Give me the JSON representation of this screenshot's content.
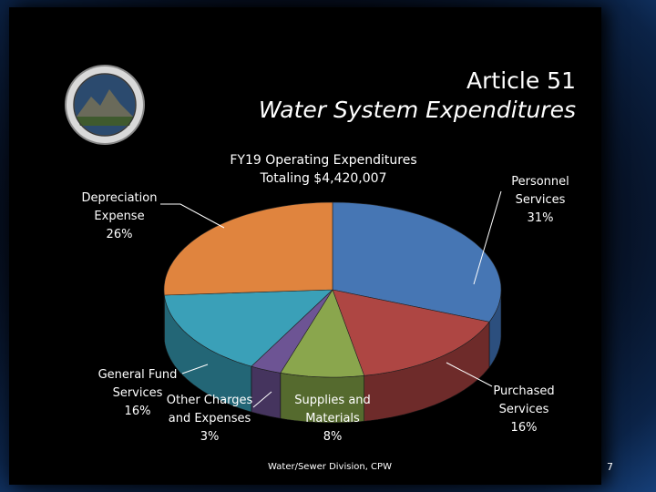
{
  "slide": {
    "title_line1": "Article 51",
    "title_line2": "Water System Expenditures",
    "footer": "Water/Sewer Division, CPW",
    "page_number": "7"
  },
  "chart_data": {
    "type": "pie",
    "title": "FY19 Operating Expenditures\nTotaling $4,420,007",
    "slices": [
      {
        "label": "Personnel\nServices\n31%",
        "value": 31,
        "color": "#4676b4",
        "side": "#2c4f7e"
      },
      {
        "label": "Purchased\nServices\n16%",
        "value": 16,
        "color": "#ae4643",
        "side": "#6e2b2a"
      },
      {
        "label": "Supplies and\nMaterials\n8%",
        "value": 8,
        "color": "#8aa64d",
        "side": "#556a2e"
      },
      {
        "label": "Other Charges\nand Expenses\n3%",
        "value": 3,
        "color": "#6d5494",
        "side": "#45345e"
      },
      {
        "label": "General Fund\nServices\n16%",
        "value": 16,
        "color": "#3aa0b8",
        "side": "#236676"
      },
      {
        "label": "Depreciation\nExpense\n26%",
        "value": 26,
        "color": "#e0843e",
        "side": "#8e5224"
      }
    ]
  }
}
